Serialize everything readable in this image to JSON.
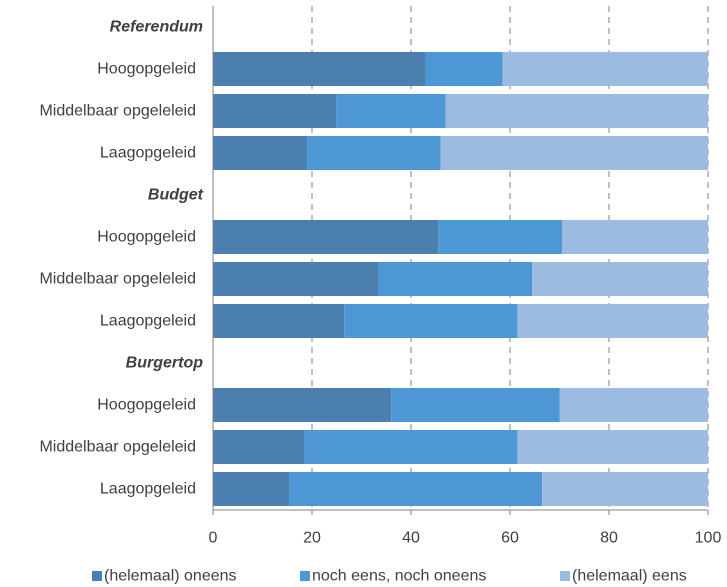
{
  "chart_data": {
    "type": "bar",
    "orientation": "horizontal",
    "stacked": true,
    "xlim": [
      0,
      100
    ],
    "xticks": [
      0,
      20,
      40,
      60,
      80,
      100
    ],
    "grid": "vertical dashed",
    "legend_position": "bottom",
    "groups": [
      {
        "label": "Referendum",
        "rows": [
          {
            "label": "Hoogopgeleid",
            "values": [
              43,
              15.5,
              41.5
            ]
          },
          {
            "label": "Middelbaar opgeleleid",
            "values": [
              25,
              22,
              53
            ]
          },
          {
            "label": "Laagopgeleid",
            "values": [
              19,
              27,
              54
            ]
          }
        ]
      },
      {
        "label": "Budget",
        "rows": [
          {
            "label": "Hoogopgeleid",
            "values": [
              45.5,
              25,
              29.5
            ]
          },
          {
            "label": "Middelbaar opgeleleid",
            "values": [
              33.5,
              31,
              35.5
            ]
          },
          {
            "label": "Laagopgeleid",
            "values": [
              26.5,
              35,
              38.5
            ]
          }
        ]
      },
      {
        "label": "Burgertop",
        "rows": [
          {
            "label": "Hoogopgeleid",
            "values": [
              36,
              34,
              30
            ]
          },
          {
            "label": "Middelbaar opgeleleid",
            "values": [
              18.5,
              43,
              38.5
            ]
          },
          {
            "label": "Laagopgeleid",
            "values": [
              15.5,
              51,
              33.5
            ]
          }
        ]
      }
    ],
    "series": [
      {
        "name": "(helemaal) oneens",
        "color": "#4a7fb0"
      },
      {
        "name": "noch eens, noch oneens",
        "color": "#4d97d4"
      },
      {
        "name": "(helemaal) eens",
        "color": "#9bbce0"
      }
    ]
  }
}
